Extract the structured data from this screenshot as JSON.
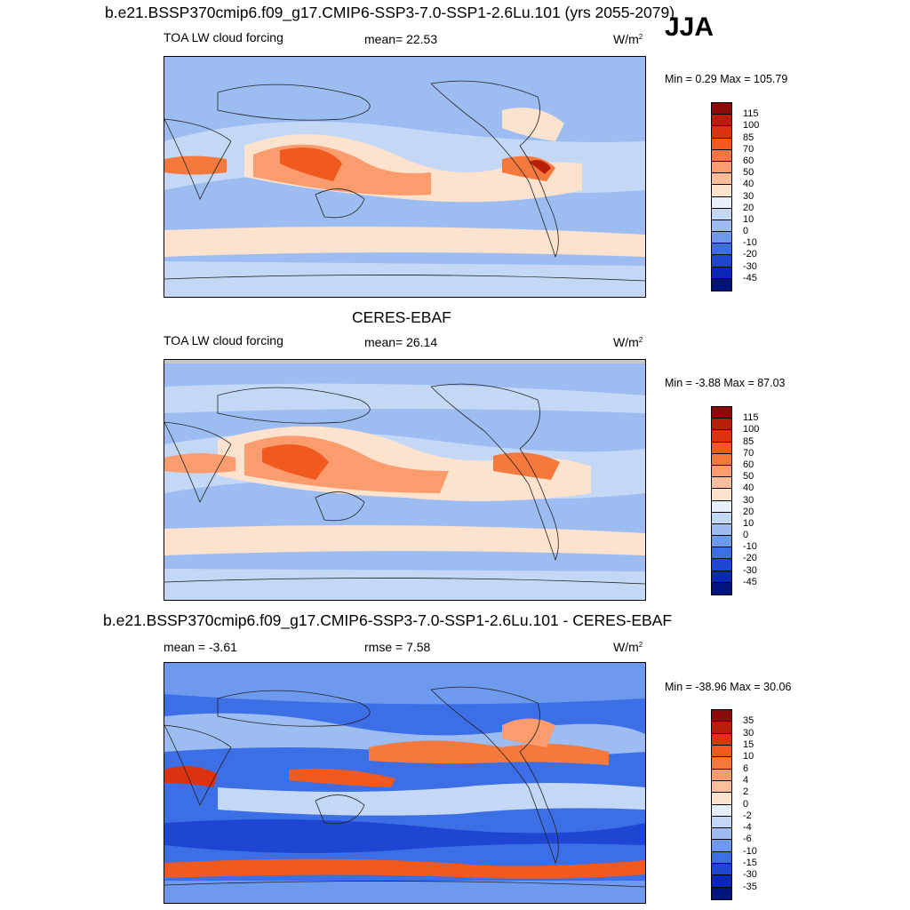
{
  "season": "JJA",
  "panels": [
    {
      "title": "b.e21.BSSP370cmip6.f09_g17.CMIP6-SSP3-7.0-SSP1-2.6Lu.101 (yrs 2055-2079)",
      "left_label": "TOA LW cloud forcing",
      "center_label": "mean=  22.53",
      "units": "W/m",
      "units_sup": "2",
      "minmax": "Min =   0.29 Max = 105.79",
      "colorbar": {
        "levels": [
          "115",
          "100",
          "85",
          "70",
          "60",
          "50",
          "40",
          "30",
          "20",
          "10",
          "0",
          "-10",
          "-20",
          "-30",
          "-45"
        ],
        "colors": [
          "#8c0a0a",
          "#b81e0a",
          "#dc320f",
          "#f05a1e",
          "#f5783c",
          "#fa9c6e",
          "#fcbe9a",
          "#fde3cd",
          "#e6effa",
          "#c4d8f6",
          "#9cbcf2",
          "#6e9aee",
          "#3c6ee6",
          "#1e46d2",
          "#0a28b4",
          "#00147d"
        ]
      }
    },
    {
      "title": "CERES-EBAF",
      "left_label": "TOA LW cloud forcing",
      "center_label": "mean=  26.14",
      "units": "W/m",
      "units_sup": "2",
      "minmax": "Min =  -3.88 Max =  87.03",
      "colorbar": {
        "levels": [
          "115",
          "100",
          "85",
          "70",
          "60",
          "50",
          "40",
          "30",
          "20",
          "10",
          "0",
          "-10",
          "-20",
          "-30",
          "-45"
        ],
        "colors": [
          "#8c0a0a",
          "#b81e0a",
          "#dc320f",
          "#f05a1e",
          "#f5783c",
          "#fa9c6e",
          "#fcbe9a",
          "#fde3cd",
          "#e6effa",
          "#c4d8f6",
          "#9cbcf2",
          "#6e9aee",
          "#3c6ee6",
          "#1e46d2",
          "#0a28b4",
          "#00147d"
        ]
      }
    },
    {
      "title": "b.e21.BSSP370cmip6.f09_g17.CMIP6-SSP3-7.0-SSP1-2.6Lu.101 - CERES-EBAF",
      "left_label": "mean =  -3.61",
      "center_label": "rmse =   7.58",
      "units": "W/m",
      "units_sup": "2",
      "minmax": "Min = -38.96 Max =  30.06",
      "colorbar": {
        "levels": [
          "35",
          "30",
          "15",
          "10",
          "6",
          "4",
          "2",
          "0",
          "-2",
          "-4",
          "-6",
          "-10",
          "-15",
          "-30",
          "-35"
        ],
        "colors": [
          "#8c0a0a",
          "#b81e0a",
          "#dc320f",
          "#f05a1e",
          "#f5783c",
          "#fa9c6e",
          "#fcbe9a",
          "#fde3cd",
          "#e6effa",
          "#c4d8f6",
          "#9cbcf2",
          "#6e9aee",
          "#3c6ee6",
          "#1e46d2",
          "#0a28b4",
          "#00147d"
        ]
      }
    }
  ],
  "chart_data": [
    {
      "type": "heatmap",
      "title": "b.e21.BSSP370cmip6.f09_g17.CMIP6-SSP3-7.0-SSP1-2.6Lu.101 (yrs 2055-2079)",
      "subtitle": "TOA LW cloud forcing",
      "units": "W/m2",
      "mean": 22.53,
      "min": 0.29,
      "max": 105.79,
      "contour_levels": [
        -45,
        -30,
        -20,
        -10,
        0,
        10,
        20,
        30,
        40,
        50,
        60,
        70,
        85,
        100,
        115
      ]
    },
    {
      "type": "heatmap",
      "title": "CERES-EBAF",
      "subtitle": "TOA LW cloud forcing",
      "units": "W/m2",
      "mean": 26.14,
      "min": -3.88,
      "max": 87.03,
      "contour_levels": [
        -45,
        -30,
        -20,
        -10,
        0,
        10,
        20,
        30,
        40,
        50,
        60,
        70,
        85,
        100,
        115
      ]
    },
    {
      "type": "heatmap",
      "title": "b.e21.BSSP370cmip6.f09_g17.CMIP6-SSP3-7.0-SSP1-2.6Lu.101 - CERES-EBAF",
      "units": "W/m2",
      "mean": -3.61,
      "rmse": 7.58,
      "min": -38.96,
      "max": 30.06,
      "contour_levels": [
        -35,
        -30,
        -15,
        -10,
        -6,
        -4,
        -2,
        0,
        2,
        4,
        6,
        10,
        15,
        30,
        35
      ]
    }
  ]
}
